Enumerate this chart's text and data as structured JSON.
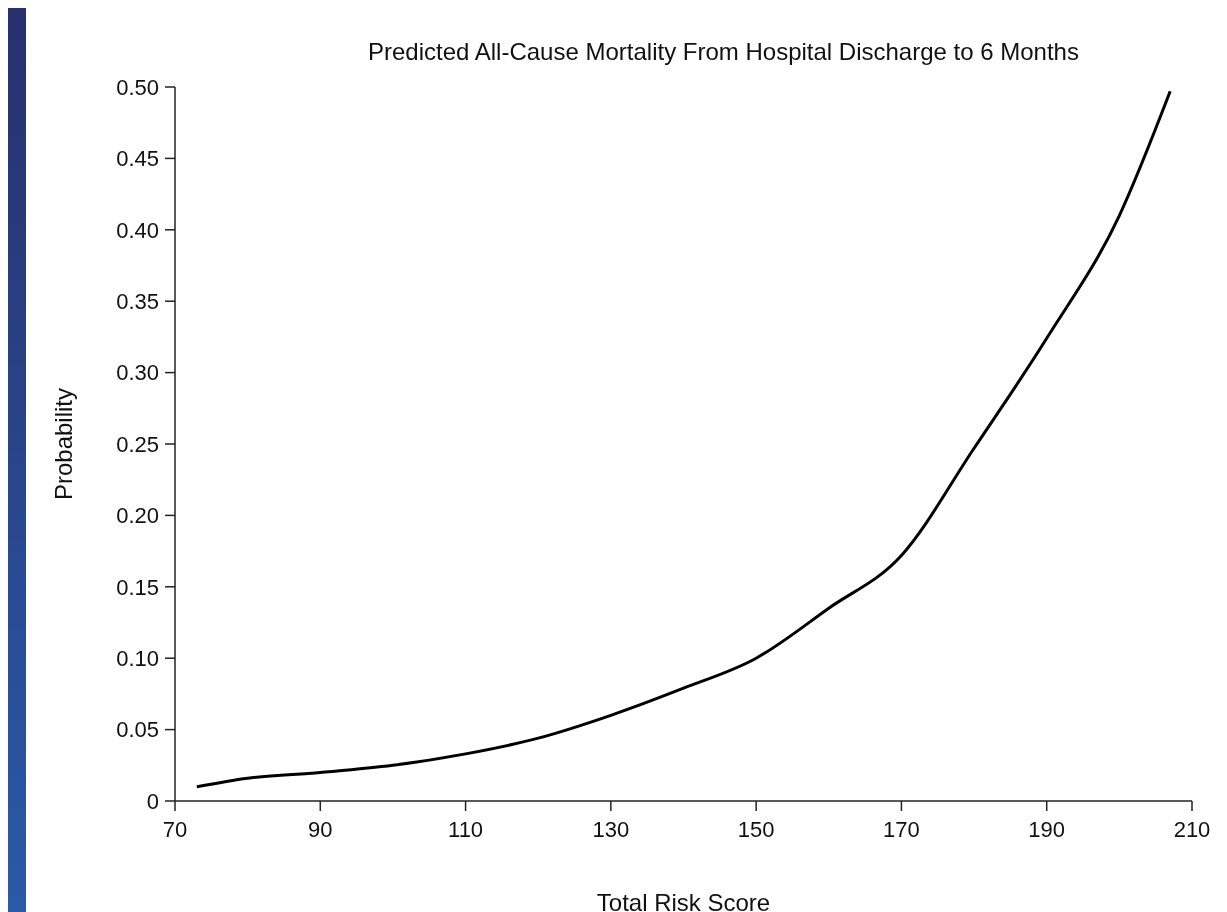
{
  "chart_data": {
    "type": "line",
    "title": "Predicted All-Cause Mortality From Hospital Discharge to 6 Months",
    "xlabel": "Total Risk Score",
    "ylabel": "Probability",
    "series": [
      {
        "color": "#000000",
        "x": [
          73,
          80,
          90,
          100,
          110,
          120,
          130,
          140,
          150,
          160,
          170,
          180,
          190,
          200,
          207
        ],
        "values": [
          0.01,
          0.016,
          0.02,
          0.025,
          0.033,
          0.044,
          0.06,
          0.079,
          0.1,
          0.135,
          0.172,
          0.247,
          0.324,
          0.41,
          0.497
        ]
      }
    ],
    "xlim": [
      70,
      210
    ],
    "xticks": [
      70,
      90,
      110,
      130,
      150,
      170,
      190,
      210
    ],
    "ylim": [
      0,
      0.5
    ],
    "yticks": [
      {
        "value": 0,
        "label": "0"
      },
      {
        "value": 0.05,
        "label": "0.05"
      },
      {
        "value": 0.1,
        "label": "0.10"
      },
      {
        "value": 0.15,
        "label": "0.15"
      },
      {
        "value": 0.2,
        "label": "0.20"
      },
      {
        "value": 0.25,
        "label": "0.25"
      },
      {
        "value": 0.3,
        "label": "0.30"
      },
      {
        "value": 0.35,
        "label": "0.35"
      },
      {
        "value": 0.4,
        "label": "0.40"
      },
      {
        "value": 0.45,
        "label": "0.45"
      },
      {
        "value": 0.5,
        "label": "0.50"
      }
    ],
    "marker": "none",
    "line_style": "solid"
  }
}
